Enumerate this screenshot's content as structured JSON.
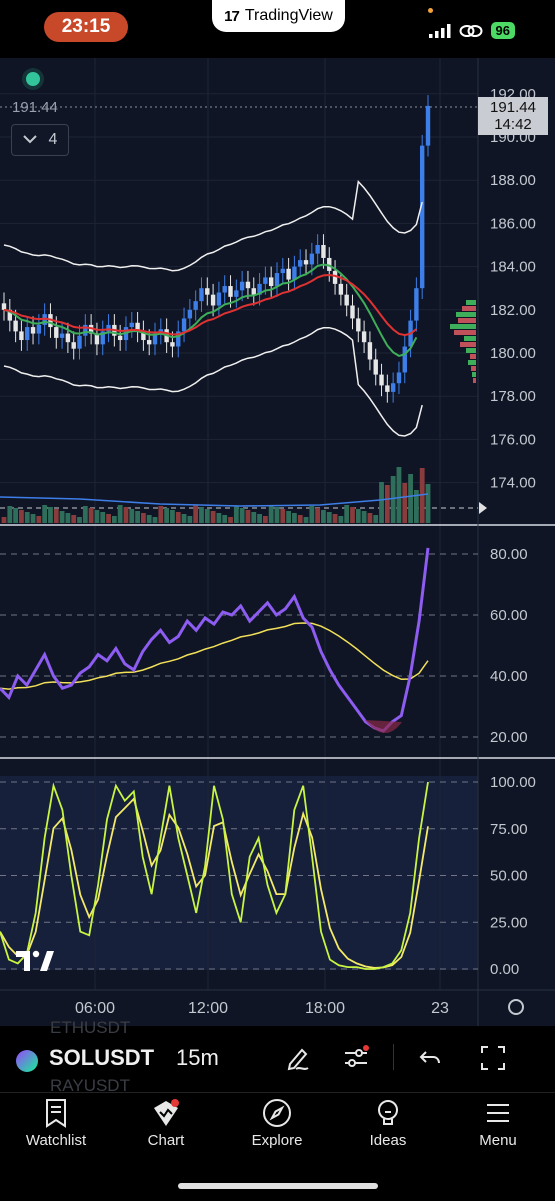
{
  "status_bar": {
    "time": "23:15",
    "app_name": "TradingView",
    "battery": "96"
  },
  "legend": {
    "last_price": "191.44",
    "collapse_count": "4"
  },
  "price_tag": {
    "price": "191.44",
    "countdown": "14:42"
  },
  "price_axis": [
    "192.00",
    "190.00",
    "188.00",
    "186.00",
    "184.00",
    "182.00",
    "180.00",
    "178.00",
    "176.00",
    "174.00"
  ],
  "rsi_axis": [
    "80.00",
    "60.00",
    "40.00",
    "20.00"
  ],
  "stoch_axis": [
    "100.00",
    "75.00",
    "50.00",
    "25.00",
    "0.00"
  ],
  "time_axis": [
    "06:00",
    "12:00",
    "18:00",
    "23"
  ],
  "toolbar": {
    "symbol": "SOLUSDT",
    "interval": "15m",
    "ghost_above": "ETHUSDT",
    "ghost_below": "RAYUSDT"
  },
  "tabs": [
    {
      "label": "Watchlist",
      "icon": "bookmark-icon"
    },
    {
      "label": "Chart",
      "icon": "chart-icon"
    },
    {
      "label": "Explore",
      "icon": "compass-icon"
    },
    {
      "label": "Ideas",
      "icon": "lightbulb-icon"
    },
    {
      "label": "Menu",
      "icon": "hamburger-icon"
    }
  ],
  "colors": {
    "background": "#0f1524",
    "up": "#3d7ee8",
    "down": "#e6e6e6",
    "rsi": "#8d5cf0",
    "rsi_ma": "#f2e05a",
    "stoch_k": "#c8f542",
    "stoch_d": "#f5e96a",
    "ema_fast": "#e03232",
    "ema_slow": "#3fae5a",
    "accent": "#c8482a"
  }
}
